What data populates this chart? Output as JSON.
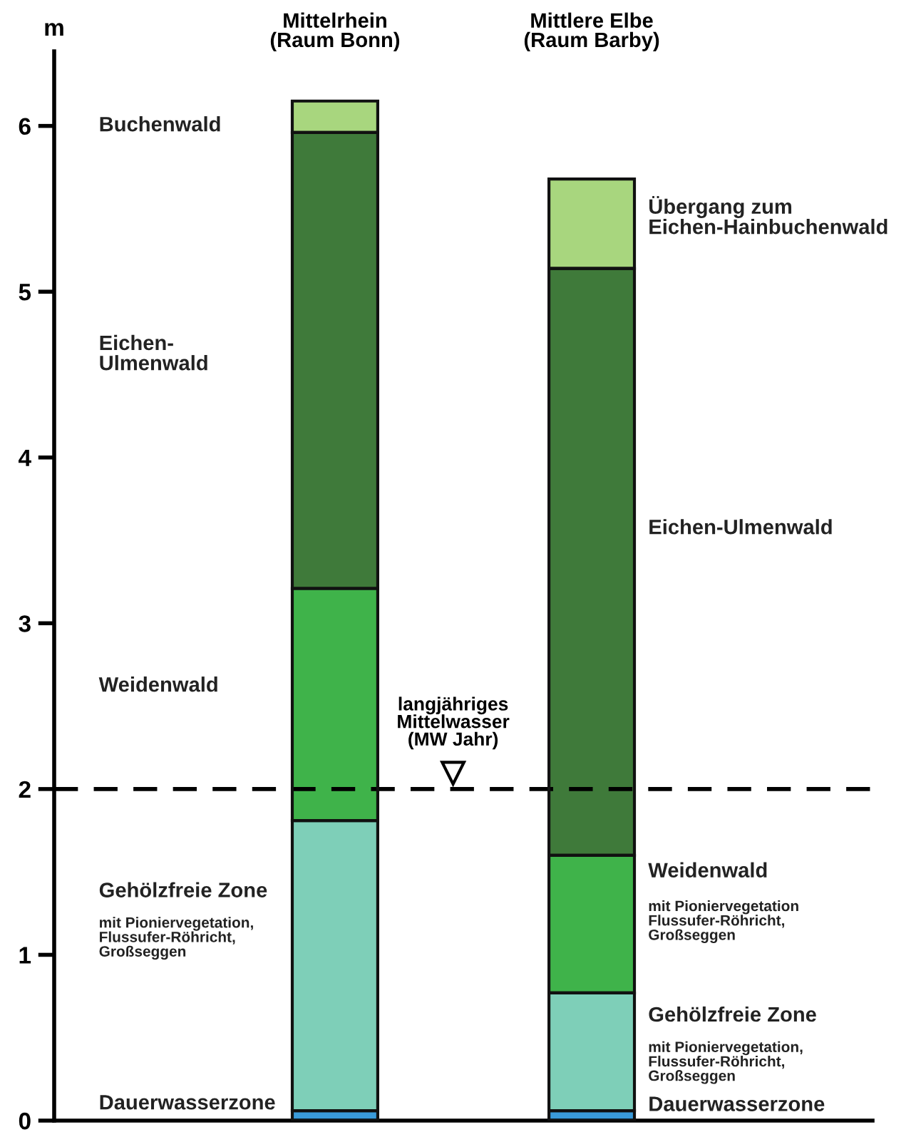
{
  "chart_data": {
    "type": "bar",
    "stacked": true,
    "ylabel": "m",
    "categories": [
      "Mittelrhein\n(Raum Bonn)",
      "Mittlere Elbe\n(Raum Barby)"
    ],
    "series": [
      {
        "color": "#3a9ad9",
        "values": [
          0.06,
          0.06
        ]
      },
      {
        "color": "#7ecfb8",
        "values": [
          1.75,
          0.71
        ]
      },
      {
        "color": "#3fb34a",
        "values": [
          1.4,
          0.83
        ]
      },
      {
        "color": "#3f7a3a",
        "values": [
          2.75,
          3.54
        ]
      },
      {
        "color": "#a8d67e",
        "values": [
          0.19,
          0.54
        ]
      }
    ],
    "ylim": [
      0,
      6.45
    ],
    "yticks": [
      0,
      1,
      2,
      3,
      4,
      5,
      6
    ],
    "grid": false,
    "ref_lines": [
      {
        "axis": "y",
        "value": 2,
        "label": "langjähriges\nMittelwasser\n(MW Jahr)",
        "line_style": "dashed",
        "color": "#000000"
      }
    ],
    "annotations": [
      "Buchenwald",
      "Eichen-\nUlmenwald",
      "Weidenwald",
      "Gehölzfreie Zone",
      "mit Pioniervegetation,\nFlussufer-Röhricht,\nGroßseggen",
      "Dauerwasserzone",
      "Übergang zum\nEichen-Hainbuchenwald",
      "Eichen-Ulmenwald",
      "Weidenwald",
      "mit Pioniervegetation\nFlussufer-Röhricht,\nGroßseggen",
      "Gehölzfreie Zone",
      "mit Pioniervegetation,\nFlussufer-Röhricht,\nGroßseggen",
      "Dauerwasserzone"
    ]
  }
}
